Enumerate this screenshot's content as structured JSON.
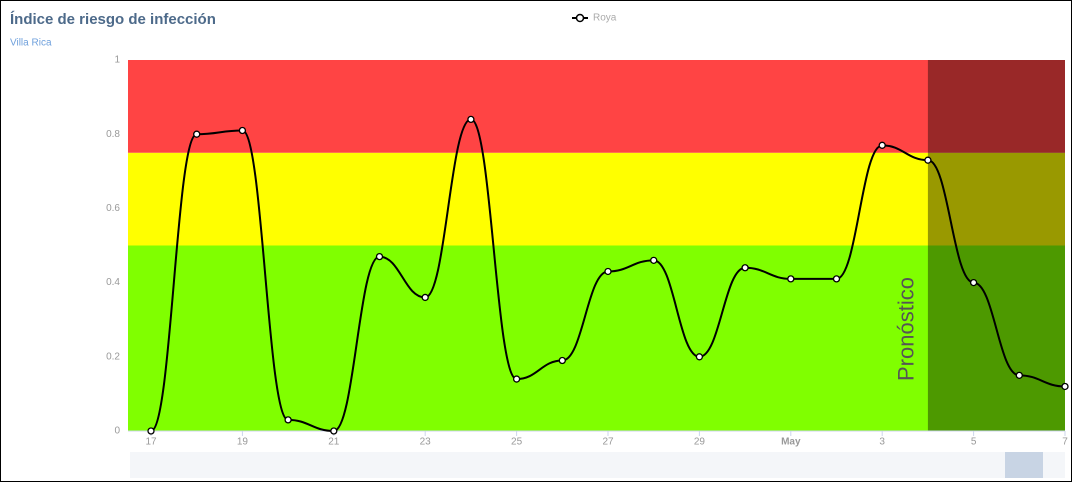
{
  "chart_data": {
    "type": "spline",
    "title": "Índice de riesgo de infección",
    "subtitle": "Villa Rica",
    "categories": [
      "17",
      null,
      "19",
      null,
      "21",
      null,
      "23",
      null,
      "25",
      null,
      "27",
      null,
      "29",
      null,
      "May",
      null,
      "3",
      null,
      "5",
      null,
      "7"
    ],
    "series": [
      {
        "name": "Roya",
        "color": "#000000",
        "values": [
          0,
          0.8,
          0.81,
          0.03,
          0,
          0.47,
          0.36,
          0.84,
          0.14,
          0.19,
          0.43,
          0.46,
          0.2,
          0.44,
          0.41,
          0.41,
          0.77,
          0.73,
          0.4,
          0.15,
          0.12
        ]
      }
    ],
    "ylim": [
      0,
      1
    ],
    "yticks": [
      0,
      0.2,
      0.4,
      0.6,
      0.8,
      1
    ],
    "bands": [
      {
        "from": 0,
        "to": 0.5,
        "color": "#80ff00"
      },
      {
        "from": 0.5,
        "to": 0.75,
        "color": "#ffff00"
      },
      {
        "from": 0.75,
        "to": 1,
        "color": "#ff4444"
      }
    ],
    "forecast": {
      "label": "Pronóstico",
      "from": 17,
      "color": "rgba(0,0,0,0.4)"
    },
    "legend": "top"
  }
}
